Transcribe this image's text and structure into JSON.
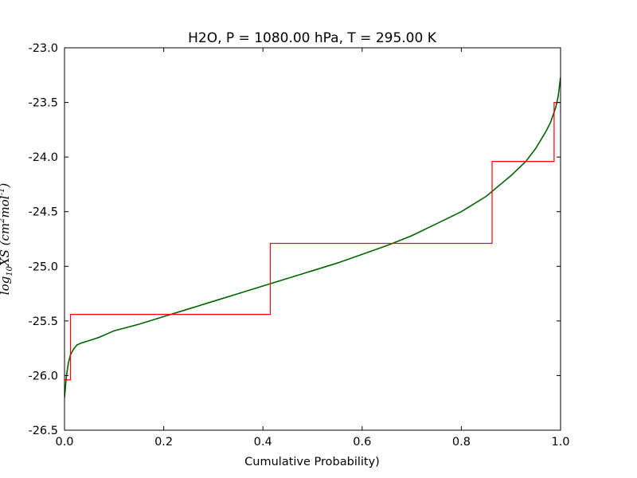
{
  "chart_data": {
    "type": "line",
    "title": "H2O, P = 1080.00 hPa, T = 295.00 K",
    "xlabel": "Cumulative Probability)",
    "ylabel_text": "log",
    "ylabel_sub": "10",
    "ylabel_rest": "XS (cm",
    "ylabel_sup1": "2",
    "ylabel_mid": "mol",
    "ylabel_sup2": "-1",
    "ylabel_close": ")",
    "xlim": [
      0.0,
      1.0
    ],
    "ylim": [
      -26.5,
      -23.0
    ],
    "xticks": [
      "0.0",
      "0.2",
      "0.4",
      "0.6",
      "0.8",
      "1.0"
    ],
    "yticks": [
      "-23.0",
      "-23.5",
      "-24.0",
      "-24.5",
      "-25.0",
      "-25.5",
      "-26.0",
      "-26.5"
    ],
    "grid": false,
    "series": [
      {
        "color": "#006400",
        "x": [
          0.0,
          0.004,
          0.008,
          0.012,
          0.018,
          0.025,
          0.035,
          0.05,
          0.07,
          0.1,
          0.15,
          0.2,
          0.25,
          0.3,
          0.35,
          0.4,
          0.45,
          0.5,
          0.55,
          0.6,
          0.65,
          0.7,
          0.75,
          0.8,
          0.85,
          0.9,
          0.93,
          0.95,
          0.97,
          0.98,
          0.99,
          0.995,
          1.0
        ],
        "y": [
          -26.2,
          -26.0,
          -25.88,
          -25.81,
          -25.76,
          -25.72,
          -25.7,
          -25.68,
          -25.65,
          -25.59,
          -25.53,
          -25.46,
          -25.39,
          -25.32,
          -25.25,
          -25.18,
          -25.11,
          -25.04,
          -24.97,
          -24.89,
          -24.81,
          -24.72,
          -24.61,
          -24.5,
          -24.36,
          -24.17,
          -24.04,
          -23.92,
          -23.77,
          -23.68,
          -23.55,
          -23.45,
          -23.27
        ]
      },
      {
        "color": "#ff0000",
        "step": true,
        "x": [
          0.0,
          0.012,
          0.012,
          0.415,
          0.415,
          0.862,
          0.862,
          0.987,
          0.987,
          1.0
        ],
        "y": [
          -26.04,
          -26.04,
          -25.44,
          -25.44,
          -24.79,
          -24.79,
          -24.04,
          -24.04,
          -23.5,
          -23.5
        ]
      }
    ]
  }
}
